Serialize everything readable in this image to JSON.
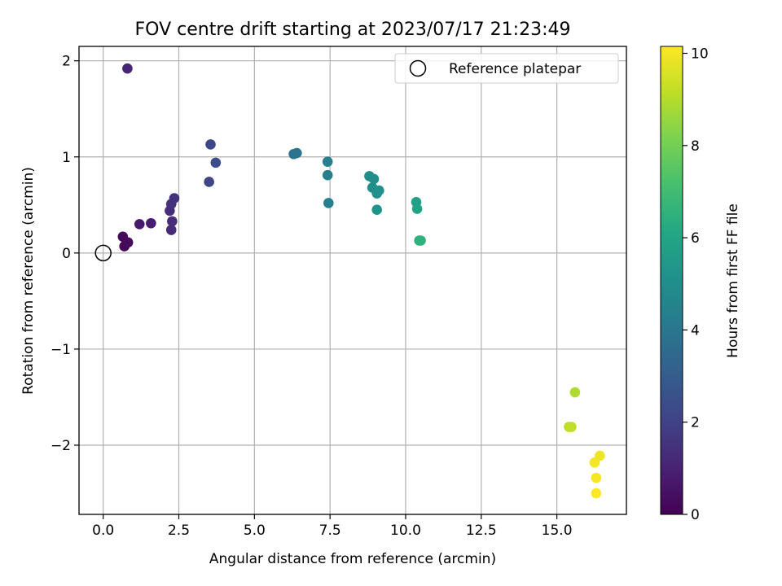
{
  "chart_data": {
    "type": "scatter",
    "title": "FOV centre drift starting at 2023/07/17 21:23:49",
    "xlabel": "Angular distance from reference (arcmin)",
    "ylabel": "Rotation from reference (arcmin)",
    "xlim": [
      -0.8,
      17.3
    ],
    "ylim": [
      -2.72,
      2.15
    ],
    "x_ticks": [
      0.0,
      2.5,
      5.0,
      7.5,
      10.0,
      12.5,
      15.0
    ],
    "x_tick_labels": [
      "0.0",
      "2.5",
      "5.0",
      "7.5",
      "10.0",
      "12.5",
      "15.0"
    ],
    "y_ticks": [
      -2,
      -1,
      0,
      1,
      2
    ],
    "y_tick_labels": [
      "−2",
      "−1",
      "0",
      "1",
      "2"
    ],
    "grid": true,
    "legend": {
      "position": "top-right",
      "entries": [
        "Reference platepar"
      ]
    },
    "reference_point": {
      "x": 0,
      "y": 0,
      "label": "Reference platepar"
    },
    "colorbar": {
      "label": "Hours from first FF file",
      "colormap": "viridis",
      "range": [
        0,
        10.15
      ],
      "ticks": [
        0,
        2,
        4,
        6,
        8,
        10
      ],
      "tick_labels": [
        "0",
        "2",
        "4",
        "6",
        "8",
        "10"
      ]
    },
    "points": [
      {
        "x": 0.7,
        "y": 0.07,
        "c": 0.05
      },
      {
        "x": 0.65,
        "y": 0.17,
        "c": 0.2
      },
      {
        "x": 0.82,
        "y": 0.11,
        "c": 0.3
      },
      {
        "x": 1.2,
        "y": 0.3,
        "c": 0.75
      },
      {
        "x": 1.58,
        "y": 0.31,
        "c": 0.85
      },
      {
        "x": 0.8,
        "y": 1.92,
        "c": 1.05
      },
      {
        "x": 2.25,
        "y": 0.24,
        "c": 1.2
      },
      {
        "x": 2.28,
        "y": 0.33,
        "c": 1.3
      },
      {
        "x": 2.2,
        "y": 0.44,
        "c": 1.35
      },
      {
        "x": 2.25,
        "y": 0.51,
        "c": 1.45
      },
      {
        "x": 2.35,
        "y": 0.57,
        "c": 1.5
      },
      {
        "x": 3.5,
        "y": 0.74,
        "c": 2.1
      },
      {
        "x": 3.55,
        "y": 1.13,
        "c": 2.2
      },
      {
        "x": 3.72,
        "y": 0.94,
        "c": 2.4
      },
      {
        "x": 6.3,
        "y": 1.03,
        "c": 3.8
      },
      {
        "x": 6.4,
        "y": 1.04,
        "c": 3.9
      },
      {
        "x": 7.42,
        "y": 0.95,
        "c": 4.3
      },
      {
        "x": 7.42,
        "y": 0.81,
        "c": 4.35
      },
      {
        "x": 7.45,
        "y": 0.52,
        "c": 4.4
      },
      {
        "x": 8.8,
        "y": 0.8,
        "c": 4.9
      },
      {
        "x": 8.95,
        "y": 0.77,
        "c": 5.0
      },
      {
        "x": 8.9,
        "y": 0.68,
        "c": 5.05
      },
      {
        "x": 9.05,
        "y": 0.62,
        "c": 5.1
      },
      {
        "x": 9.12,
        "y": 0.65,
        "c": 5.15
      },
      {
        "x": 9.05,
        "y": 0.45,
        "c": 5.25
      },
      {
        "x": 10.35,
        "y": 0.53,
        "c": 5.8
      },
      {
        "x": 10.38,
        "y": 0.46,
        "c": 5.85
      },
      {
        "x": 10.45,
        "y": 0.13,
        "c": 6.45
      },
      {
        "x": 10.5,
        "y": 0.13,
        "c": 6.5
      },
      {
        "x": 15.6,
        "y": -1.45,
        "c": 8.9
      },
      {
        "x": 15.4,
        "y": -1.81,
        "c": 9.1
      },
      {
        "x": 15.48,
        "y": -1.81,
        "c": 9.2
      },
      {
        "x": 16.42,
        "y": -2.11,
        "c": 9.9
      },
      {
        "x": 16.25,
        "y": -2.18,
        "c": 10.0
      },
      {
        "x": 16.3,
        "y": -2.34,
        "c": 10.05
      },
      {
        "x": 16.3,
        "y": -2.5,
        "c": 10.1
      }
    ]
  }
}
